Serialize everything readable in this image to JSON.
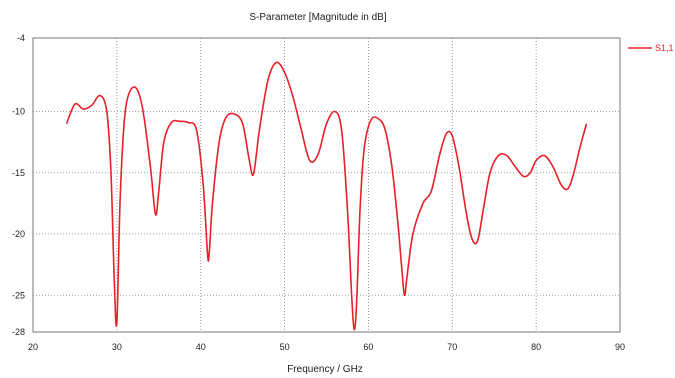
{
  "chart_data": {
    "type": "line",
    "title": "S-Parameter [Magnitude in dB]",
    "xlabel": "Frequency / GHz",
    "ylabel": "",
    "xlim": [
      20,
      90
    ],
    "ylim": [
      -28,
      -4
    ],
    "xticks": [
      20,
      30,
      40,
      50,
      60,
      70,
      80,
      90
    ],
    "yticks": [
      -4,
      -10,
      -15,
      -20,
      -25,
      -28
    ],
    "grid": true,
    "legend_position": "right",
    "series": [
      {
        "name": "S1,1",
        "color": "#e8202a",
        "x": [
          24,
          25,
          26,
          27,
          28,
          28.8,
          29.3,
          29.7,
          30,
          30.4,
          31,
          32,
          33,
          34,
          34.6,
          35,
          35.6,
          36.5,
          37.5,
          38.5,
          39.5,
          40.3,
          40.8,
          41,
          41.4,
          42.2,
          43,
          44,
          45,
          45.8,
          46.3,
          47,
          48,
          49,
          50,
          51,
          52,
          53,
          54,
          55,
          56,
          56.8,
          57.5,
          58,
          58.3,
          58.6,
          59,
          59.5,
          60.3,
          61.2,
          62,
          62.8,
          63.5,
          64,
          64.3,
          64.6,
          65.3,
          66.5,
          67.5,
          68.5,
          69.3,
          70,
          70.8,
          71.6,
          72.3,
          73,
          73.7,
          74.5,
          75.5,
          76.5,
          77.5,
          78.5,
          79.3,
          80,
          81,
          82,
          83,
          83.8,
          84.5,
          85.2,
          86
        ],
        "values": [
          -11.0,
          -9.4,
          -9.8,
          -9.5,
          -8.7,
          -10.0,
          -15.0,
          -24.0,
          -27.2,
          -17.0,
          -10.0,
          -8.0,
          -9.5,
          -14.5,
          -18.4,
          -16.5,
          -12.5,
          -10.9,
          -10.8,
          -10.9,
          -11.5,
          -16.0,
          -21.5,
          -21.7,
          -17.5,
          -12.5,
          -10.5,
          -10.2,
          -11.0,
          -14.0,
          -15.1,
          -11.5,
          -7.5,
          -6.0,
          -6.8,
          -8.8,
          -11.5,
          -14.0,
          -13.5,
          -11.0,
          -10.0,
          -11.5,
          -18.0,
          -25.0,
          -27.8,
          -25.5,
          -18.0,
          -13.0,
          -10.7,
          -10.6,
          -11.5,
          -14.5,
          -19.0,
          -23.0,
          -25.0,
          -23.5,
          -20.0,
          -17.5,
          -16.5,
          -13.5,
          -11.8,
          -12.0,
          -14.5,
          -18.0,
          -20.3,
          -20.6,
          -18.0,
          -15.0,
          -13.6,
          -13.6,
          -14.5,
          -15.3,
          -15.0,
          -14.0,
          -13.6,
          -14.5,
          -16.0,
          -16.3,
          -15.0,
          -13.0,
          -11.0
        ]
      }
    ]
  }
}
